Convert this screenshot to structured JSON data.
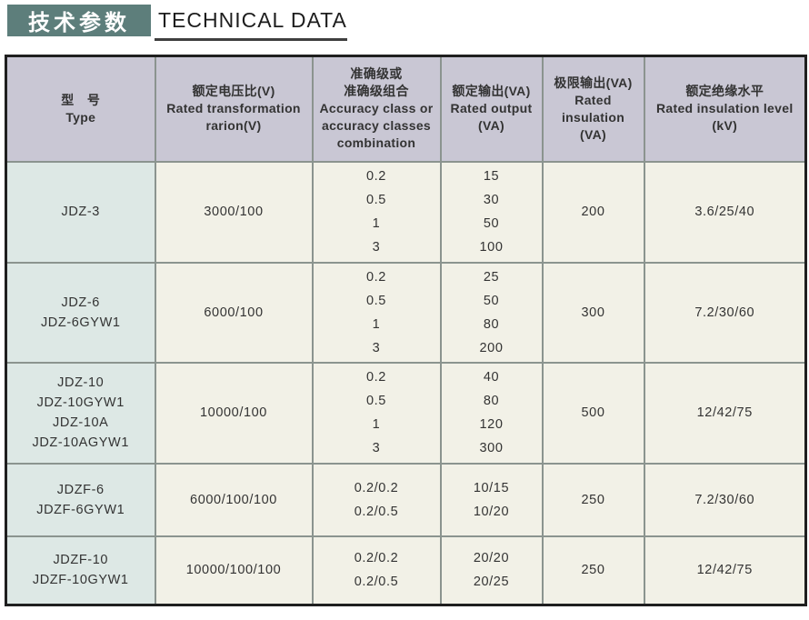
{
  "header": {
    "title_cn": "技术参数",
    "title_en": "TECHNICAL DATA"
  },
  "colors": {
    "title_block_bg": "#5d7e7b",
    "title_text": "#ffffff",
    "underline": "#3f3f3f",
    "header_row_bg": "#c9c7d4",
    "type_column_bg": "#dde8e5",
    "data_cell_bg": "#f2f1e7",
    "inner_border": "#8b948f",
    "outer_border": "#1f1f1f"
  },
  "table": {
    "headers": [
      {
        "lines": [
          "型　号",
          "Type"
        ]
      },
      {
        "lines": [
          "额定电压比(V)",
          "Rated transformation",
          "rarion(V)"
        ]
      },
      {
        "lines": [
          "准确级或",
          "准确级组合",
          "Accuracy class or",
          "accuracy classes",
          "combination"
        ]
      },
      {
        "lines": [
          "额定输出(VA)",
          "Rated output",
          "(VA)"
        ]
      },
      {
        "lines": [
          "极限输出(VA)",
          "Rated insulation",
          "(VA)"
        ]
      },
      {
        "lines": [
          "额定绝缘水平",
          "Rated insulation level",
          "(kV)"
        ]
      }
    ],
    "rows": [
      {
        "type": [
          "JDZ-3"
        ],
        "ratio": [
          "3000/100"
        ],
        "accuracy": [
          "0.2",
          "0.5",
          "1",
          "3"
        ],
        "output": [
          "15",
          "30",
          "50",
          "100"
        ],
        "limit": [
          "200"
        ],
        "insulation": [
          "3.6/25/40"
        ]
      },
      {
        "type": [
          "JDZ-6",
          "JDZ-6GYW1"
        ],
        "ratio": [
          "6000/100"
        ],
        "accuracy": [
          "0.2",
          "0.5",
          "1",
          "3"
        ],
        "output": [
          "25",
          "50",
          "80",
          "200"
        ],
        "limit": [
          "300"
        ],
        "insulation": [
          "7.2/30/60"
        ]
      },
      {
        "type": [
          "JDZ-10",
          "JDZ-10GYW1",
          "JDZ-10A",
          "JDZ-10AGYW1"
        ],
        "ratio": [
          "10000/100"
        ],
        "accuracy": [
          "0.2",
          "0.5",
          "1",
          "3"
        ],
        "output": [
          "40",
          "80",
          "120",
          "300"
        ],
        "limit": [
          "500"
        ],
        "insulation": [
          "12/42/75"
        ]
      },
      {
        "type": [
          "JDZF-6",
          "JDZF-6GYW1"
        ],
        "ratio": [
          "6000/100/100"
        ],
        "accuracy": [
          "0.2/0.2",
          "0.2/0.5"
        ],
        "output": [
          "10/15",
          "10/20"
        ],
        "limit": [
          "250"
        ],
        "insulation": [
          "7.2/30/60"
        ]
      },
      {
        "type": [
          "JDZF-10",
          "JDZF-10GYW1"
        ],
        "ratio": [
          "10000/100/100"
        ],
        "accuracy": [
          "0.2/0.2",
          "0.2/0.5"
        ],
        "output": [
          "20/20",
          "20/25"
        ],
        "limit": [
          "250"
        ],
        "insulation": [
          "12/42/75"
        ]
      }
    ]
  }
}
